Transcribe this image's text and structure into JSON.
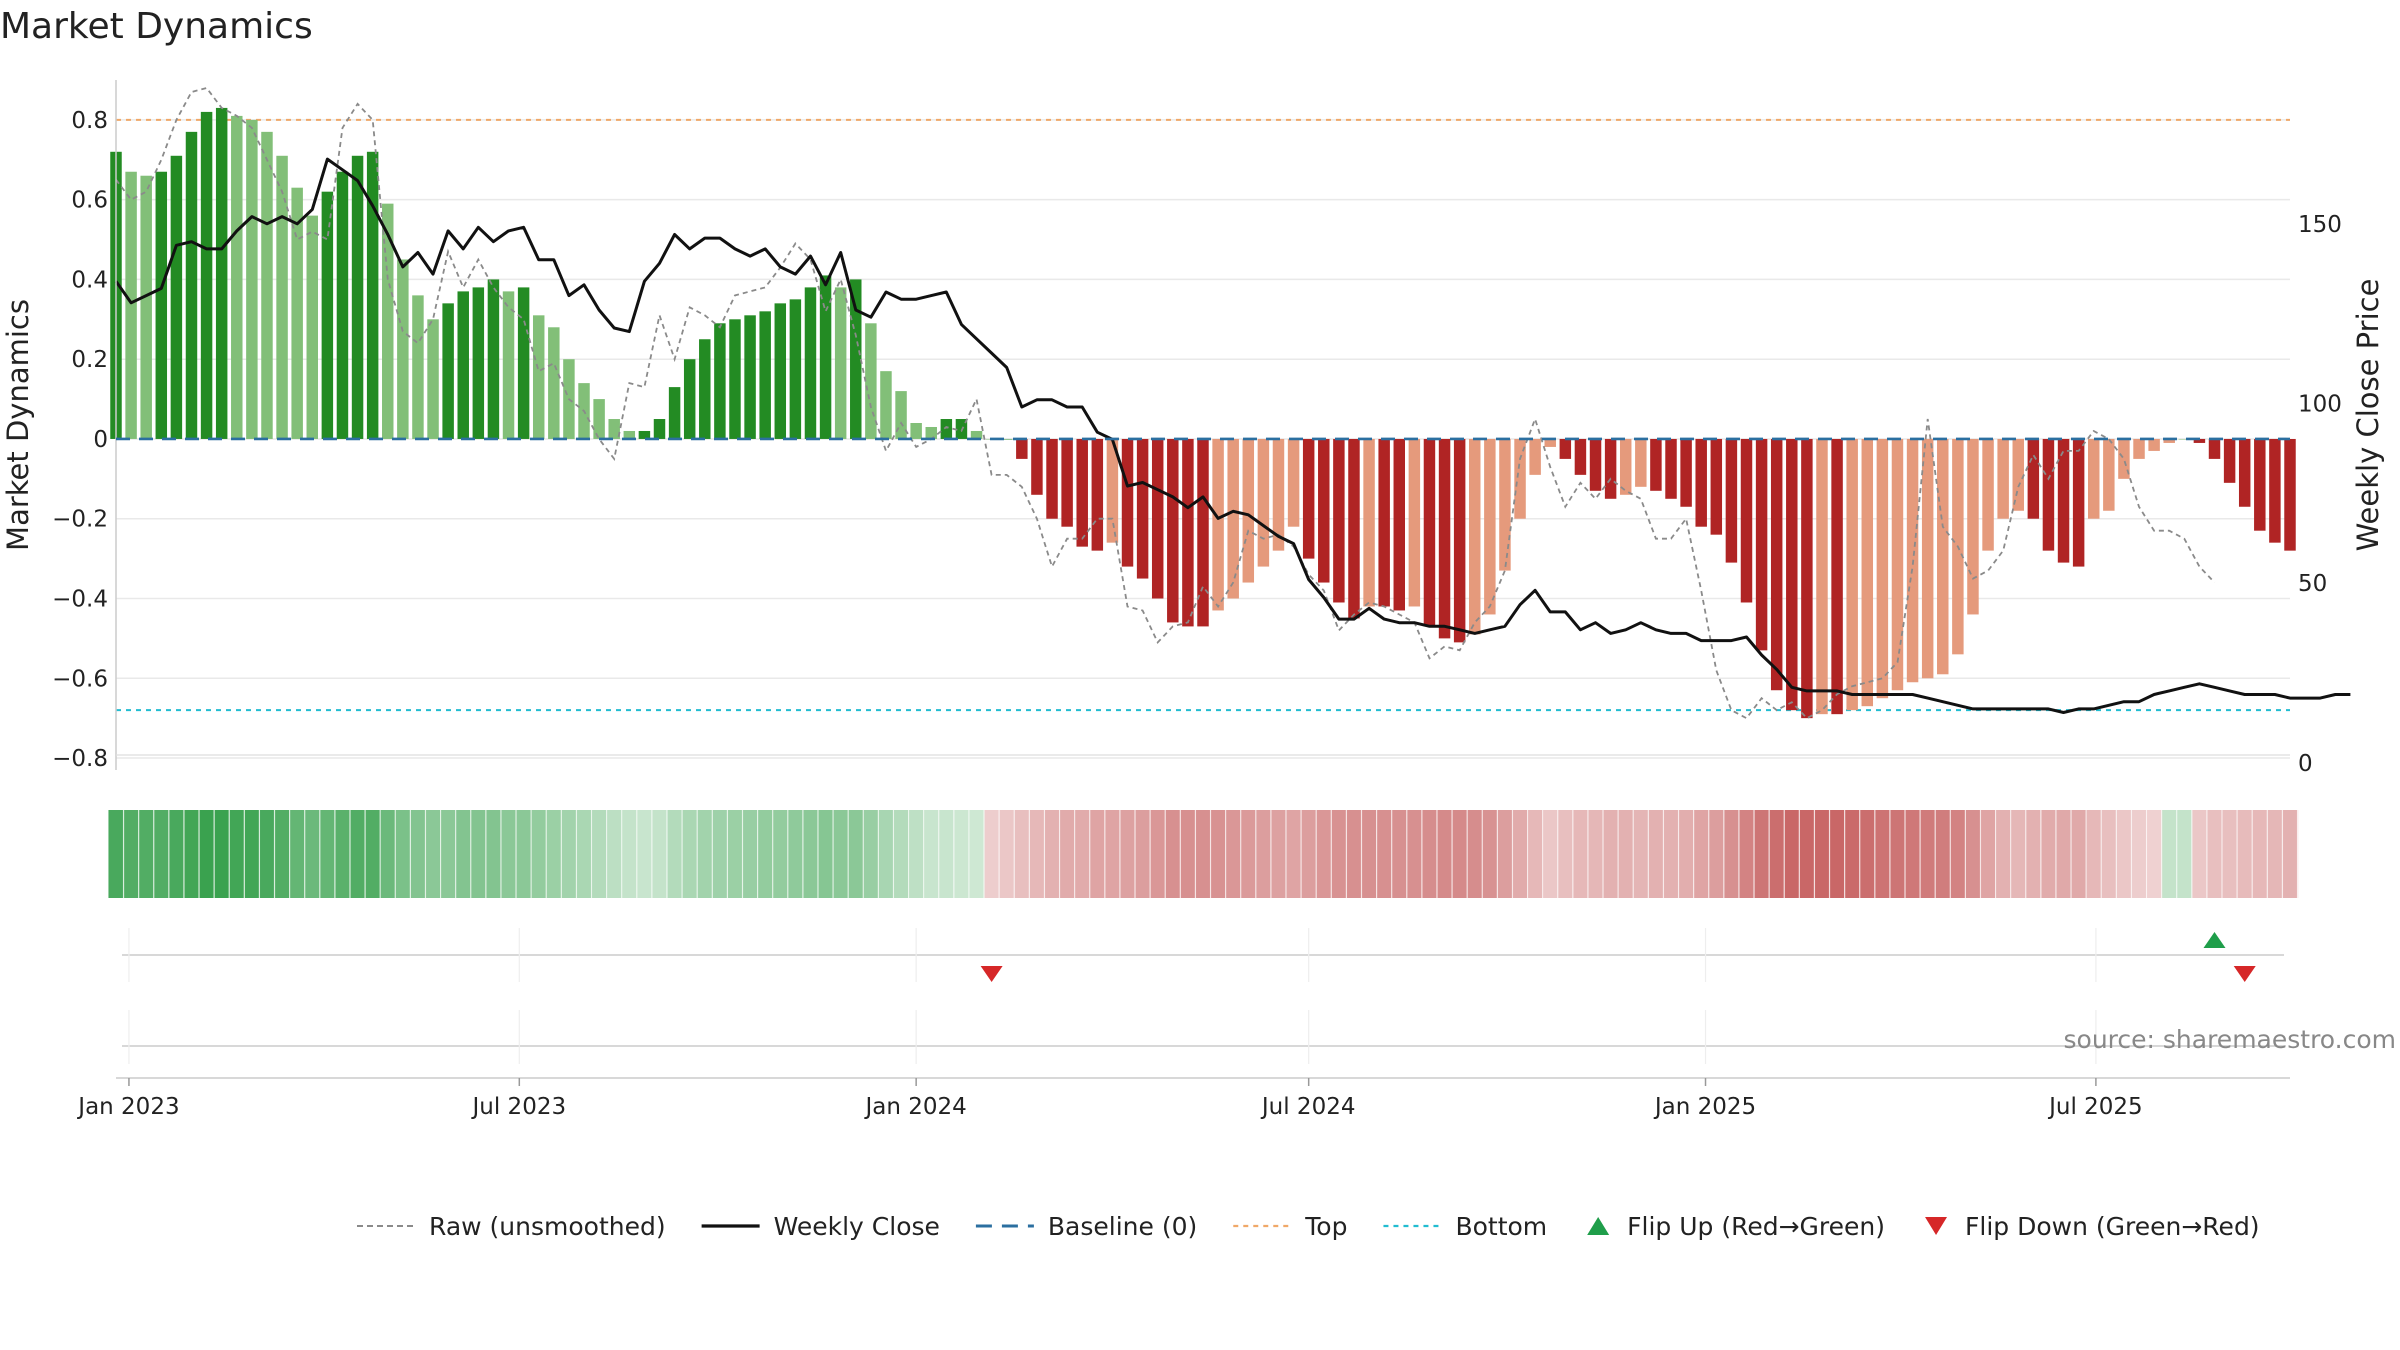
{
  "chart_data": {
    "type": "bar",
    "title": "Market Dynamics",
    "source": "source: sharemaestro.com",
    "ylabel": "Market Dynamics",
    "y2label": "Weekly Close Price",
    "ylim": [
      -0.83,
      0.9
    ],
    "y2lim": [
      -2,
      190
    ],
    "yticks": [
      0.8,
      0.6,
      0.4,
      0.2,
      0,
      -0.2,
      -0.4,
      -0.6,
      -0.8
    ],
    "yticklabels": [
      "0.8",
      "0.6",
      "0.4",
      "0.2",
      "0",
      "−0.2",
      "−0.4",
      "−0.6",
      "−0.8"
    ],
    "y2ticks": [
      150,
      100,
      50,
      0
    ],
    "y2ticklabels": [
      "150",
      "100",
      "50",
      "0"
    ],
    "x_start": "2022-12-26",
    "x_end": "2025-09-29",
    "xticks": [
      {
        "date": "2023-01-01",
        "label": "Jan 2023"
      },
      {
        "date": "2023-07-01",
        "label": "Jul 2023"
      },
      {
        "date": "2024-01-01",
        "label": "Jan 2024"
      },
      {
        "date": "2024-07-01",
        "label": "Jul 2024"
      },
      {
        "date": "2025-01-01",
        "label": "Jan 2025"
      },
      {
        "date": "2025-07-01",
        "label": "Jul 2025"
      }
    ],
    "first_week": "2022-12-26",
    "top_line": 0.8,
    "bottom_line": -0.68,
    "baseline": 0,
    "dynamics": [
      0.72,
      0.67,
      0.66,
      0.67,
      0.71,
      0.77,
      0.82,
      0.83,
      0.81,
      0.8,
      0.77,
      0.71,
      0.63,
      0.56,
      0.62,
      0.67,
      0.71,
      0.72,
      0.59,
      0.45,
      0.36,
      0.3,
      0.34,
      0.37,
      0.38,
      0.4,
      0.37,
      0.38,
      0.31,
      0.28,
      0.2,
      0.14,
      0.1,
      0.05,
      0.02,
      0.02,
      0.05,
      0.13,
      0.2,
      0.25,
      0.29,
      0.3,
      0.31,
      0.32,
      0.34,
      0.35,
      0.38,
      0.41,
      0.38,
      0.4,
      0.29,
      0.17,
      0.12,
      0.04,
      0.03,
      0.05,
      0.05,
      0.02,
      0.0,
      0.0,
      -0.05,
      -0.14,
      -0.2,
      -0.22,
      -0.27,
      -0.28,
      -0.26,
      -0.32,
      -0.35,
      -0.4,
      -0.46,
      -0.47,
      -0.47,
      -0.43,
      -0.4,
      -0.36,
      -0.32,
      -0.28,
      -0.22,
      -0.3,
      -0.36,
      -0.41,
      -0.45,
      -0.42,
      -0.42,
      -0.43,
      -0.42,
      -0.47,
      -0.5,
      -0.51,
      -0.49,
      -0.44,
      -0.33,
      -0.2,
      -0.09,
      -0.02,
      -0.05,
      -0.09,
      -0.13,
      -0.15,
      -0.14,
      -0.12,
      -0.13,
      -0.15,
      -0.17,
      -0.22,
      -0.24,
      -0.31,
      -0.41,
      -0.53,
      -0.63,
      -0.68,
      -0.7,
      -0.69,
      -0.69,
      -0.68,
      -0.67,
      -0.65,
      -0.63,
      -0.61,
      -0.6,
      -0.59,
      -0.54,
      -0.44,
      -0.28,
      -0.2,
      -0.18,
      -0.2,
      -0.28,
      -0.31,
      -0.32,
      -0.2,
      -0.18,
      -0.1,
      -0.05,
      -0.03,
      -0.01,
      0.0,
      -0.01,
      -0.05,
      -0.11,
      -0.17,
      -0.23,
      -0.26,
      -0.28
    ],
    "raw_unsmoothed": [
      0.65,
      0.6,
      0.62,
      0.7,
      0.8,
      0.87,
      0.88,
      0.83,
      0.81,
      0.78,
      0.7,
      0.62,
      0.5,
      0.52,
      0.5,
      0.78,
      0.84,
      0.8,
      0.4,
      0.27,
      0.24,
      0.3,
      0.47,
      0.38,
      0.45,
      0.38,
      0.33,
      0.3,
      0.17,
      0.19,
      0.1,
      0.07,
      0.0,
      -0.05,
      0.14,
      0.13,
      0.31,
      0.2,
      0.33,
      0.31,
      0.28,
      0.36,
      0.37,
      0.38,
      0.43,
      0.49,
      0.45,
      0.32,
      0.4,
      0.26,
      0.08,
      -0.03,
      0.04,
      -0.02,
      0.0,
      0.03,
      0.02,
      0.1,
      -0.09,
      -0.09,
      -0.12,
      -0.2,
      -0.32,
      -0.25,
      -0.25,
      -0.2,
      -0.2,
      -0.42,
      -0.43,
      -0.51,
      -0.47,
      -0.46,
      -0.37,
      -0.42,
      -0.36,
      -0.23,
      -0.25,
      -0.24,
      -0.27,
      -0.34,
      -0.38,
      -0.48,
      -0.44,
      -0.41,
      -0.42,
      -0.44,
      -0.46,
      -0.55,
      -0.52,
      -0.53,
      -0.46,
      -0.42,
      -0.33,
      -0.05,
      0.05,
      -0.07,
      -0.17,
      -0.11,
      -0.15,
      -0.1,
      -0.13,
      -0.15,
      -0.25,
      -0.25,
      -0.2,
      -0.38,
      -0.58,
      -0.68,
      -0.7,
      -0.65,
      -0.68,
      -0.66,
      -0.7,
      -0.68,
      -0.64,
      -0.62,
      -0.61,
      -0.6,
      -0.56,
      -0.32,
      0.05,
      -0.22,
      -0.27,
      -0.35,
      -0.33,
      -0.28,
      -0.12,
      -0.04,
      -0.1,
      -0.03,
      -0.03,
      0.02,
      0.0,
      -0.05,
      -0.17,
      -0.23,
      -0.23,
      -0.25,
      -0.32,
      -0.36
    ],
    "weekly_close": [
      134,
      128,
      130,
      132,
      144,
      145,
      143,
      143,
      148,
      152,
      150,
      152,
      150,
      154,
      168,
      165,
      162,
      155,
      147,
      138,
      142,
      136,
      148,
      143,
      149,
      145,
      148,
      149,
      140,
      140,
      130,
      133,
      126,
      121,
      120,
      134,
      139,
      147,
      143,
      146,
      146,
      143,
      141,
      143,
      138,
      136,
      141,
      133,
      142,
      126,
      124,
      131,
      129,
      129,
      130,
      131,
      122,
      118,
      114,
      110,
      99,
      101,
      101,
      99,
      99,
      92,
      90,
      77,
      78,
      76,
      74,
      71,
      74,
      68,
      70,
      69,
      66,
      63,
      61,
      51,
      46,
      40,
      40,
      43,
      40,
      39,
      39,
      38,
      38,
      37,
      36,
      37,
      38,
      44,
      48,
      42,
      42,
      37,
      39,
      36,
      37,
      39,
      37,
      36,
      36,
      34,
      34,
      34,
      35,
      30,
      26,
      21,
      20,
      20,
      20,
      19,
      19,
      19,
      19,
      19,
      18,
      17,
      16,
      15,
      15,
      15,
      15,
      15,
      15,
      14,
      15,
      15,
      16,
      17,
      17,
      19,
      20,
      21,
      22,
      21,
      20,
      19,
      19,
      19,
      18,
      18,
      18,
      19,
      19
    ],
    "regime_strip": [
      -0.9,
      -0.85,
      -0.85,
      -0.85,
      -0.9,
      -0.95,
      -1.0,
      -1.0,
      -0.95,
      -0.95,
      -0.9,
      -0.85,
      -0.75,
      -0.7,
      -0.75,
      -0.8,
      -0.85,
      -0.85,
      -0.7,
      -0.6,
      -0.55,
      -0.5,
      -0.5,
      -0.55,
      -0.55,
      -0.55,
      -0.5,
      -0.5,
      -0.45,
      -0.4,
      -0.35,
      -0.3,
      -0.25,
      -0.2,
      -0.15,
      -0.12,
      -0.15,
      -0.25,
      -0.3,
      -0.35,
      -0.38,
      -0.4,
      -0.42,
      -0.45,
      -0.45,
      -0.48,
      -0.5,
      -0.52,
      -0.5,
      -0.5,
      -0.42,
      -0.32,
      -0.25,
      -0.18,
      -0.12,
      -0.12,
      -0.1,
      -0.08,
      0.15,
      0.2,
      0.25,
      0.3,
      0.35,
      0.4,
      0.4,
      0.45,
      0.45,
      0.48,
      0.5,
      0.55,
      0.6,
      0.6,
      0.6,
      0.58,
      0.55,
      0.52,
      0.5,
      0.48,
      0.45,
      0.5,
      0.55,
      0.58,
      0.6,
      0.6,
      0.6,
      0.6,
      0.6,
      0.62,
      0.65,
      0.65,
      0.62,
      0.58,
      0.5,
      0.4,
      0.3,
      0.2,
      0.25,
      0.3,
      0.32,
      0.35,
      0.35,
      0.33,
      0.35,
      0.35,
      0.38,
      0.45,
      0.5,
      0.6,
      0.7,
      0.8,
      0.85,
      0.9,
      0.9,
      0.9,
      0.9,
      0.88,
      0.85,
      0.82,
      0.8,
      0.78,
      0.76,
      0.75,
      0.7,
      0.6,
      0.45,
      0.35,
      0.32,
      0.35,
      0.4,
      0.42,
      0.42,
      0.3,
      0.25,
      0.2,
      0.15,
      0.12,
      -0.15,
      -0.15,
      0.2,
      0.25,
      0.25,
      0.28,
      0.3,
      0.32,
      0.35
    ],
    "flip_up": [
      {
        "date": "2025-08-25",
        "label": "Flip Up (Red→Green)"
      }
    ],
    "flip_down": [
      {
        "date": "2024-02-05",
        "label": "Flip Down (Green→Red)"
      },
      {
        "date": "2025-09-08",
        "label": "Flip Down (Green→Red)"
      }
    ],
    "colors": {
      "up_strong": "#238b23",
      "up_weak": "#82bf78",
      "down_strong": "#b02424",
      "down_weak": "#e59a7c",
      "raw": "#8a8a8a",
      "close": "#111111",
      "baseline": "#2b6fa0",
      "top": "#f0a868",
      "bottom": "#21bcd0",
      "flip_up": "#1f9e4a",
      "flip_down": "#d62728",
      "grid": "#e9e9e9"
    },
    "legend": {
      "placement": "bottom-center",
      "entries": [
        {
          "key": "raw",
          "label": "Raw (unsmoothed)"
        },
        {
          "key": "close",
          "label": "Weekly Close"
        },
        {
          "key": "baseline",
          "label": "Baseline (0)"
        },
        {
          "key": "top",
          "label": "Top"
        },
        {
          "key": "bottom",
          "label": "Bottom"
        },
        {
          "key": "flip_up",
          "label": "Flip Up (Red→Green)"
        },
        {
          "key": "flip_down",
          "label": "Flip Down (Green→Red)"
        }
      ]
    }
  }
}
